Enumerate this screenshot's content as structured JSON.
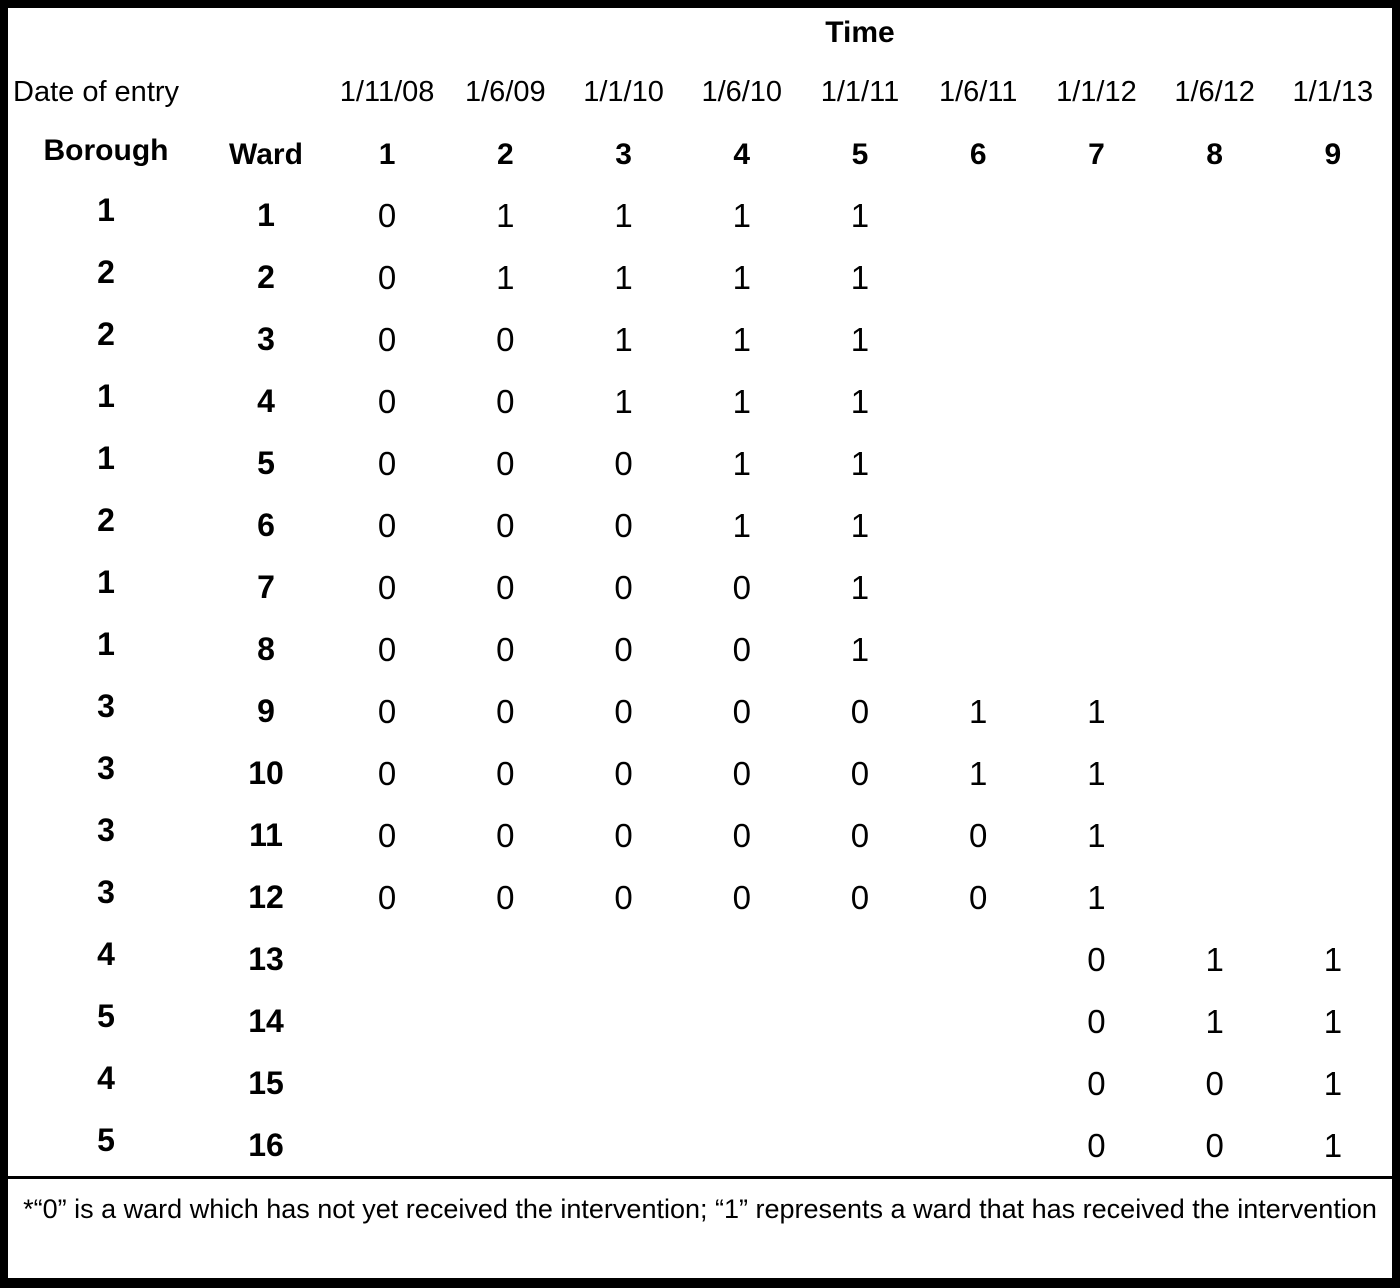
{
  "table": {
    "time_header": "Time",
    "date_of_entry_label": "Date of entry",
    "borough_header": "Borough",
    "ward_header": "Ward",
    "dates": [
      "1/11/08",
      "1/6/09",
      "1/1/10",
      "1/6/10",
      "1/1/11",
      "1/6/11",
      "1/1/12",
      "1/6/12",
      "1/1/13"
    ],
    "period_numbers": [
      "1",
      "2",
      "3",
      "4",
      "5",
      "6",
      "7",
      "8",
      "9"
    ],
    "rows": [
      {
        "borough": "1",
        "ward": "1",
        "values": [
          "0",
          "1",
          "1",
          "1",
          "1",
          "",
          "",
          "",
          ""
        ]
      },
      {
        "borough": "2",
        "ward": "2",
        "values": [
          "0",
          "1",
          "1",
          "1",
          "1",
          "",
          "",
          "",
          ""
        ]
      },
      {
        "borough": "2",
        "ward": "3",
        "values": [
          "0",
          "0",
          "1",
          "1",
          "1",
          "",
          "",
          "",
          ""
        ]
      },
      {
        "borough": "1",
        "ward": "4",
        "values": [
          "0",
          "0",
          "1",
          "1",
          "1",
          "",
          "",
          "",
          ""
        ]
      },
      {
        "borough": "1",
        "ward": "5",
        "values": [
          "0",
          "0",
          "0",
          "1",
          "1",
          "",
          "",
          "",
          ""
        ]
      },
      {
        "borough": "2",
        "ward": "6",
        "values": [
          "0",
          "0",
          "0",
          "1",
          "1",
          "",
          "",
          "",
          ""
        ]
      },
      {
        "borough": "1",
        "ward": "7",
        "values": [
          "0",
          "0",
          "0",
          "0",
          "1",
          "",
          "",
          "",
          ""
        ]
      },
      {
        "borough": "1",
        "ward": "8",
        "values": [
          "0",
          "0",
          "0",
          "0",
          "1",
          "",
          "",
          "",
          ""
        ]
      },
      {
        "borough": "3",
        "ward": "9",
        "values": [
          "0",
          "0",
          "0",
          "0",
          "0",
          "1",
          "1",
          "",
          ""
        ]
      },
      {
        "borough": "3",
        "ward": "10",
        "values": [
          "0",
          "0",
          "0",
          "0",
          "0",
          "1",
          "1",
          "",
          ""
        ]
      },
      {
        "borough": "3",
        "ward": "11",
        "values": [
          "0",
          "0",
          "0",
          "0",
          "0",
          "0",
          "1",
          "",
          ""
        ]
      },
      {
        "borough": "3",
        "ward": "12",
        "values": [
          "0",
          "0",
          "0",
          "0",
          "0",
          "0",
          "1",
          "",
          ""
        ]
      },
      {
        "borough": "4",
        "ward": "13",
        "values": [
          "",
          "",
          "",
          "",
          "",
          "",
          "0",
          "1",
          "1"
        ]
      },
      {
        "borough": "5",
        "ward": "14",
        "values": [
          "",
          "",
          "",
          "",
          "",
          "",
          "0",
          "1",
          "1"
        ]
      },
      {
        "borough": "4",
        "ward": "15",
        "values": [
          "",
          "",
          "",
          "",
          "",
          "",
          "0",
          "0",
          "1"
        ]
      },
      {
        "borough": "5",
        "ward": "16",
        "values": [
          "",
          "",
          "",
          "",
          "",
          "",
          "0",
          "0",
          "1"
        ]
      }
    ]
  },
  "footnote": "*“0” is a ward which has not yet received the intervention; “1” represents a ward that has received the intervention",
  "colors": {
    "background": "#ffffff",
    "text": "#000000",
    "border": "#000000"
  }
}
